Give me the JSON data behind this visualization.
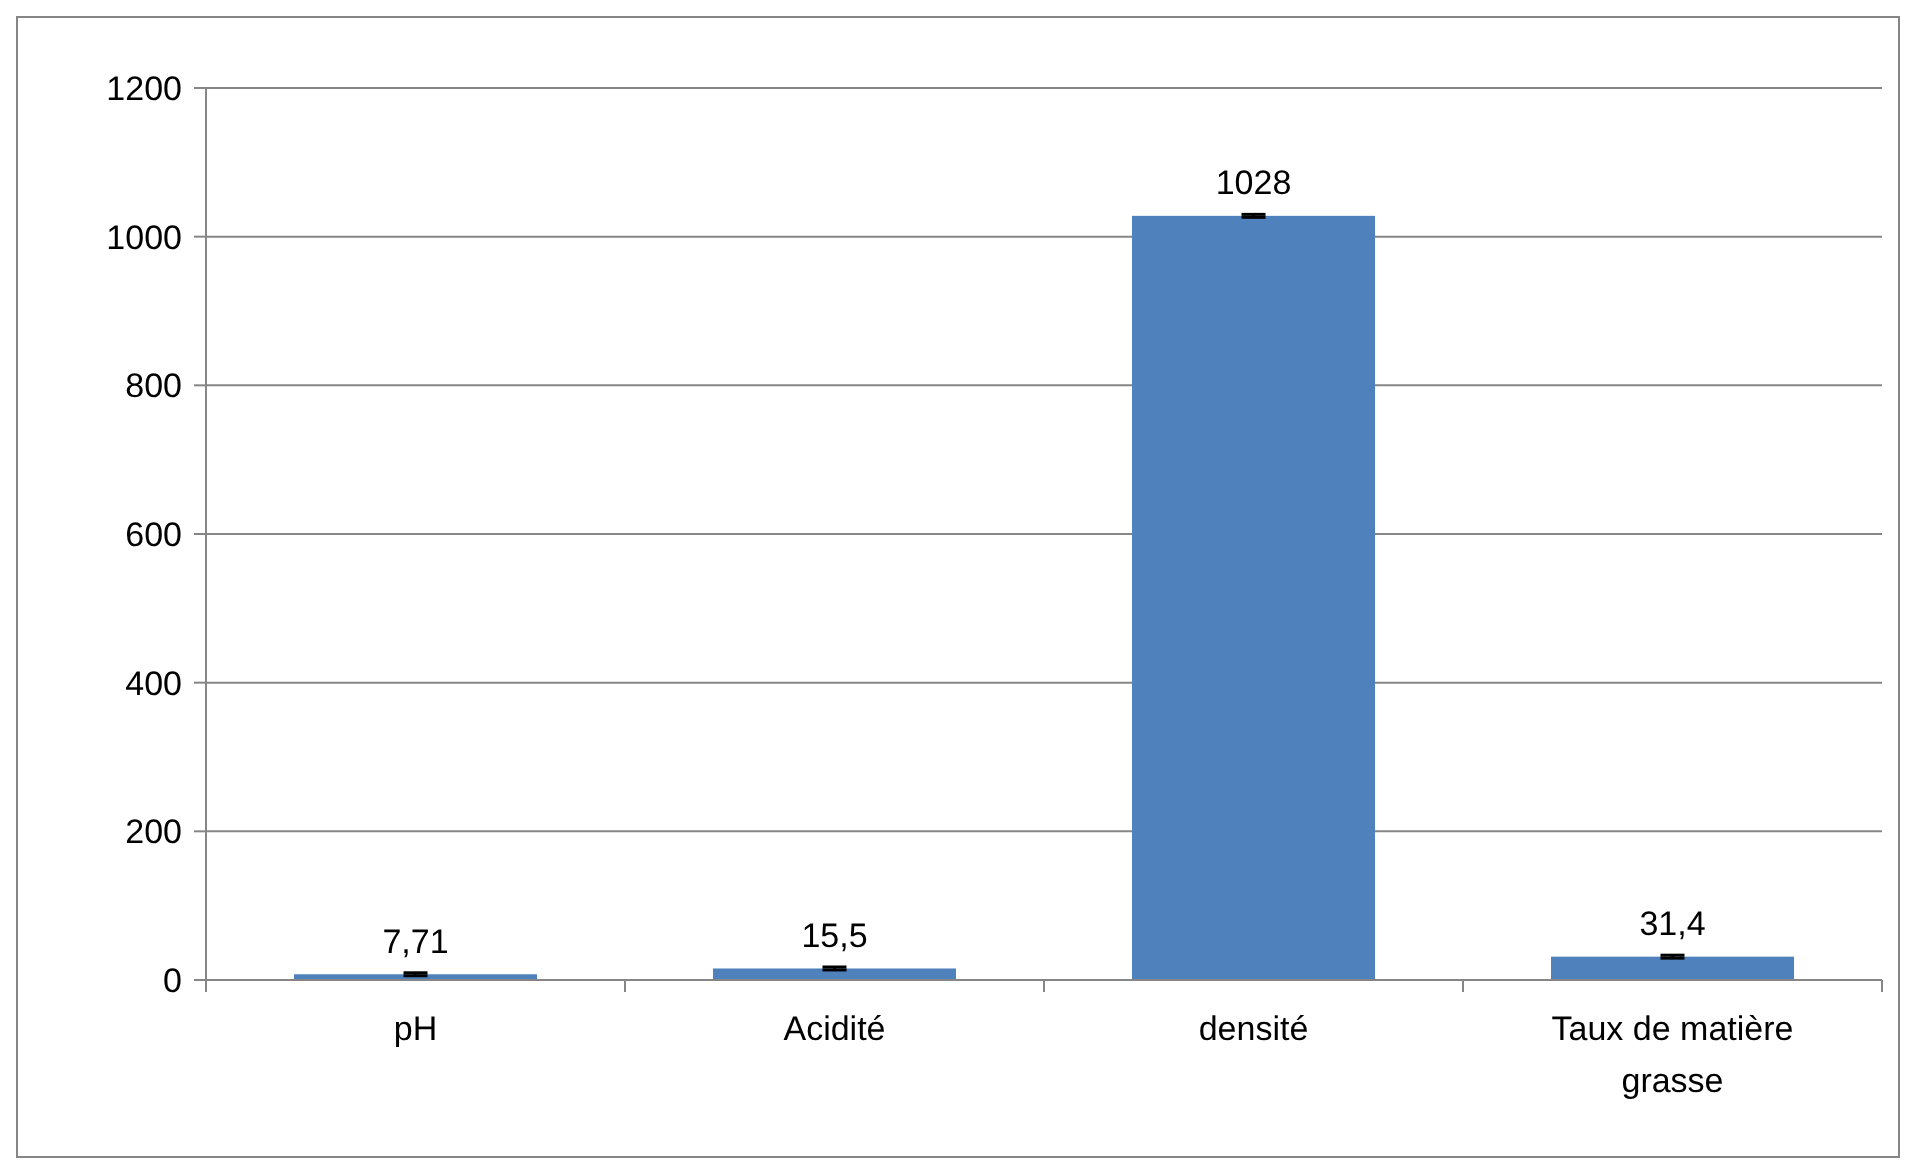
{
  "chart_data": {
    "type": "bar",
    "categories": [
      "pH",
      "Acidité",
      "densité",
      "Taux de matière grasse"
    ],
    "values": [
      7.71,
      15.5,
      1028,
      31.4
    ],
    "color": "#4f81bd",
    "errors": [
      2,
      2,
      2,
      2
    ],
    "value_labels": [
      "7,71",
      "15,5",
      "1028",
      "31,4"
    ],
    "ylim": [
      0,
      1200
    ],
    "yticks": [
      0,
      200,
      400,
      600,
      800,
      1000,
      1200
    ],
    "grid": "y"
  }
}
